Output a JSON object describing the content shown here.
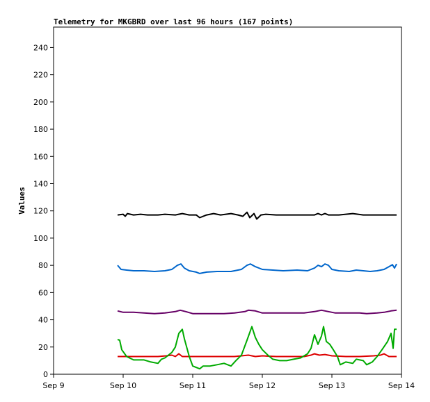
{
  "chart_data": {
    "type": "line",
    "title": "Telemetry for MKGBRD over last 96 hours (167 points)",
    "xlabel": "",
    "ylabel": "Values",
    "ylim": [
      0,
      255
    ],
    "xlim": [
      "Sep 9",
      "Sep 14"
    ],
    "x_tick_labels": [
      "Sep 9",
      "Sep 10",
      "Sep 11",
      "Sep 12",
      "Sep 13",
      "Sep 14"
    ],
    "y_ticks": [
      0,
      20,
      40,
      60,
      80,
      100,
      120,
      140,
      160,
      180,
      200,
      220,
      240
    ],
    "grid": false,
    "legend": "none",
    "x_unit": "day of September",
    "series": [
      {
        "color": "#000000",
        "points": [
          [
            9.92,
            117
          ],
          [
            10.0,
            117.5
          ],
          [
            10.03,
            116
          ],
          [
            10.06,
            118
          ],
          [
            10.15,
            117
          ],
          [
            10.25,
            117.5
          ],
          [
            10.35,
            117
          ],
          [
            10.5,
            117
          ],
          [
            10.6,
            117.5
          ],
          [
            10.75,
            117
          ],
          [
            10.85,
            118
          ],
          [
            10.95,
            117
          ],
          [
            11.05,
            117
          ],
          [
            11.1,
            115
          ],
          [
            11.2,
            117
          ],
          [
            11.3,
            118
          ],
          [
            11.4,
            117
          ],
          [
            11.55,
            118
          ],
          [
            11.65,
            117
          ],
          [
            11.72,
            116
          ],
          [
            11.78,
            119
          ],
          [
            11.82,
            115
          ],
          [
            11.88,
            118
          ],
          [
            11.92,
            114
          ],
          [
            11.98,
            117
          ],
          [
            12.05,
            117.5
          ],
          [
            12.2,
            117
          ],
          [
            12.4,
            117
          ],
          [
            12.6,
            117
          ],
          [
            12.75,
            117
          ],
          [
            12.8,
            118
          ],
          [
            12.85,
            117
          ],
          [
            12.9,
            118
          ],
          [
            12.95,
            117
          ],
          [
            13.1,
            117
          ],
          [
            13.3,
            118
          ],
          [
            13.45,
            117
          ],
          [
            13.6,
            117
          ],
          [
            13.75,
            117
          ],
          [
            13.93,
            117
          ]
        ]
      },
      {
        "color": "#0066cc",
        "points": [
          [
            9.92,
            80
          ],
          [
            9.97,
            77
          ],
          [
            10.05,
            76.5
          ],
          [
            10.15,
            76
          ],
          [
            10.3,
            76
          ],
          [
            10.45,
            75.5
          ],
          [
            10.6,
            76
          ],
          [
            10.7,
            77
          ],
          [
            10.78,
            80
          ],
          [
            10.83,
            81
          ],
          [
            10.88,
            78
          ],
          [
            10.95,
            76
          ],
          [
            11.05,
            75
          ],
          [
            11.1,
            74
          ],
          [
            11.2,
            75
          ],
          [
            11.35,
            75.5
          ],
          [
            11.55,
            75.5
          ],
          [
            11.7,
            77
          ],
          [
            11.78,
            80
          ],
          [
            11.83,
            81
          ],
          [
            11.9,
            79
          ],
          [
            12.0,
            77
          ],
          [
            12.15,
            76.5
          ],
          [
            12.3,
            76
          ],
          [
            12.5,
            76.5
          ],
          [
            12.65,
            76
          ],
          [
            12.75,
            78
          ],
          [
            12.8,
            80
          ],
          [
            12.85,
            79
          ],
          [
            12.9,
            81
          ],
          [
            12.95,
            80
          ],
          [
            13.0,
            77
          ],
          [
            13.1,
            76
          ],
          [
            13.25,
            75.5
          ],
          [
            13.35,
            76.5
          ],
          [
            13.45,
            76
          ],
          [
            13.55,
            75.5
          ],
          [
            13.65,
            76
          ],
          [
            13.75,
            77
          ],
          [
            13.82,
            79
          ],
          [
            13.87,
            80.5
          ],
          [
            13.9,
            78
          ],
          [
            13.93,
            81
          ]
        ]
      },
      {
        "color": "#660066",
        "points": [
          [
            9.92,
            46.5
          ],
          [
            10.0,
            45.5
          ],
          [
            10.15,
            45.5
          ],
          [
            10.3,
            45
          ],
          [
            10.45,
            44.5
          ],
          [
            10.6,
            45
          ],
          [
            10.75,
            46
          ],
          [
            10.82,
            47
          ],
          [
            10.9,
            46
          ],
          [
            11.0,
            44.5
          ],
          [
            11.2,
            44.5
          ],
          [
            11.45,
            44.5
          ],
          [
            11.6,
            45
          ],
          [
            11.75,
            46
          ],
          [
            11.8,
            47
          ],
          [
            11.9,
            46.5
          ],
          [
            12.0,
            45
          ],
          [
            12.2,
            45
          ],
          [
            12.4,
            45
          ],
          [
            12.6,
            45
          ],
          [
            12.75,
            46
          ],
          [
            12.85,
            47
          ],
          [
            12.95,
            46
          ],
          [
            13.05,
            45
          ],
          [
            13.2,
            45
          ],
          [
            13.4,
            45
          ],
          [
            13.5,
            44.5
          ],
          [
            13.65,
            45
          ],
          [
            13.75,
            45.5
          ],
          [
            13.85,
            46.5
          ],
          [
            13.93,
            47
          ]
        ]
      },
      {
        "color": "#dd0000",
        "points": [
          [
            9.92,
            13
          ],
          [
            10.1,
            13
          ],
          [
            10.3,
            13
          ],
          [
            10.5,
            13
          ],
          [
            10.62,
            13.5
          ],
          [
            10.7,
            14
          ],
          [
            10.75,
            13
          ],
          [
            10.8,
            15
          ],
          [
            10.85,
            13
          ],
          [
            11.0,
            13
          ],
          [
            11.2,
            13
          ],
          [
            11.4,
            13
          ],
          [
            11.6,
            13
          ],
          [
            11.7,
            13.5
          ],
          [
            11.8,
            14
          ],
          [
            11.9,
            13
          ],
          [
            12.0,
            13.5
          ],
          [
            12.2,
            13
          ],
          [
            12.4,
            13
          ],
          [
            12.6,
            13
          ],
          [
            12.7,
            14
          ],
          [
            12.75,
            15
          ],
          [
            12.82,
            14
          ],
          [
            12.9,
            14.5
          ],
          [
            13.0,
            13.5
          ],
          [
            13.2,
            13
          ],
          [
            13.4,
            13
          ],
          [
            13.6,
            13.5
          ],
          [
            13.7,
            14
          ],
          [
            13.75,
            15
          ],
          [
            13.82,
            13
          ],
          [
            13.93,
            13
          ]
        ]
      },
      {
        "color": "#00aa00",
        "points": [
          [
            9.92,
            25.5
          ],
          [
            9.95,
            25
          ],
          [
            9.98,
            18
          ],
          [
            10.05,
            13
          ],
          [
            10.15,
            10.5
          ],
          [
            10.3,
            10.5
          ],
          [
            10.4,
            9
          ],
          [
            10.5,
            8
          ],
          [
            10.55,
            11
          ],
          [
            10.6,
            12
          ],
          [
            10.7,
            16
          ],
          [
            10.75,
            20
          ],
          [
            10.8,
            30
          ],
          [
            10.85,
            33
          ],
          [
            10.88,
            26
          ],
          [
            10.95,
            13
          ],
          [
            11.0,
            6
          ],
          [
            11.05,
            5
          ],
          [
            11.1,
            4
          ],
          [
            11.15,
            6
          ],
          [
            11.25,
            6
          ],
          [
            11.35,
            7
          ],
          [
            11.45,
            8
          ],
          [
            11.55,
            6
          ],
          [
            11.62,
            10
          ],
          [
            11.7,
            14
          ],
          [
            11.78,
            25
          ],
          [
            11.85,
            35
          ],
          [
            11.9,
            27
          ],
          [
            11.95,
            22
          ],
          [
            12.0,
            18
          ],
          [
            12.08,
            14
          ],
          [
            12.15,
            11
          ],
          [
            12.25,
            10
          ],
          [
            12.35,
            10
          ],
          [
            12.45,
            11
          ],
          [
            12.55,
            12
          ],
          [
            12.65,
            15
          ],
          [
            12.7,
            19
          ],
          [
            12.75,
            29
          ],
          [
            12.8,
            22
          ],
          [
            12.85,
            28
          ],
          [
            12.88,
            35
          ],
          [
            12.92,
            24
          ],
          [
            12.97,
            22
          ],
          [
            13.02,
            18
          ],
          [
            13.08,
            13
          ],
          [
            13.12,
            7
          ],
          [
            13.2,
            9
          ],
          [
            13.3,
            8
          ],
          [
            13.35,
            11
          ],
          [
            13.45,
            10
          ],
          [
            13.5,
            7
          ],
          [
            13.58,
            9
          ],
          [
            13.65,
            13
          ],
          [
            13.72,
            18
          ],
          [
            13.8,
            24
          ],
          [
            13.85,
            30
          ],
          [
            13.88,
            19
          ],
          [
            13.9,
            33
          ],
          [
            13.93,
            33
          ]
        ]
      }
    ]
  }
}
